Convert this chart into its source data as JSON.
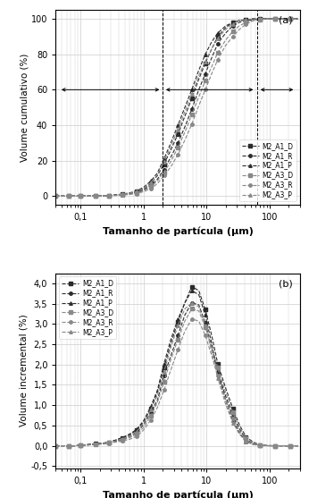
{
  "xlabel": "Tamanho de partícula (μm)",
  "ylabel_a": "Volume cumulativo (%)",
  "ylabel_b": "Volume incremental (%)",
  "xlim": [
    0.04,
    300
  ],
  "ylim_a": [
    -5,
    105
  ],
  "ylim_b": [
    -0.55,
    4.25
  ],
  "yticks_a": [
    0,
    20,
    40,
    60,
    80,
    100
  ],
  "yticks_b": [
    -0.5,
    0.0,
    0.5,
    1.0,
    1.5,
    2.0,
    2.5,
    3.0,
    3.5,
    4.0
  ],
  "series": [
    {
      "label": "M2_A1_D",
      "color": "#2b2b2b",
      "marker": "s",
      "markersize": 2.5,
      "ls": "--",
      "lw": 0.8
    },
    {
      "label": "M2_A1_R",
      "color": "#2b2b2b",
      "marker": "o",
      "markersize": 2.5,
      "ls": "--",
      "lw": 0.8
    },
    {
      "label": "M2_A1_P",
      "color": "#2b2b2b",
      "marker": "^",
      "markersize": 2.5,
      "ls": "--",
      "lw": 0.8
    },
    {
      "label": "M2_A3_D",
      "color": "#888888",
      "marker": "s",
      "markersize": 2.5,
      "ls": "--",
      "lw": 0.8
    },
    {
      "label": "M2_A3_R",
      "color": "#888888",
      "marker": "o",
      "markersize": 2.5,
      "ls": "--",
      "lw": 0.8
    },
    {
      "label": "M2_A3_P",
      "color": "#888888",
      "marker": "^",
      "markersize": 2.5,
      "ls": "--",
      "lw": 0.8
    }
  ],
  "cumulative_x": [
    0.04,
    0.05,
    0.065,
    0.08,
    0.1,
    0.13,
    0.17,
    0.22,
    0.28,
    0.36,
    0.46,
    0.6,
    0.77,
    1.0,
    1.3,
    1.65,
    2.1,
    2.7,
    3.5,
    4.5,
    5.8,
    7.5,
    9.5,
    12,
    15,
    20,
    26,
    33,
    42,
    55,
    70,
    90,
    120,
    160,
    210,
    280
  ],
  "cumulative": {
    "M2_A1_D": [
      0,
      0,
      0,
      0,
      0,
      0.05,
      0.1,
      0.2,
      0.3,
      0.6,
      1.0,
      1.6,
      2.5,
      4.2,
      7.2,
      11.5,
      18,
      26,
      35,
      45,
      55,
      66,
      75,
      83,
      90,
      95,
      98,
      99,
      99.5,
      100,
      100,
      100,
      100,
      100,
      100,
      100
    ],
    "M2_A1_R": [
      0,
      0,
      0,
      0,
      0,
      0.05,
      0.1,
      0.15,
      0.25,
      0.5,
      0.8,
      1.3,
      2.0,
      3.5,
      6.0,
      9.5,
      15,
      22,
      30,
      39,
      49,
      60,
      69,
      78,
      86,
      92,
      96,
      98,
      99,
      99.5,
      100,
      100,
      100,
      100,
      100,
      100
    ],
    "M2_A1_P": [
      0,
      0,
      0,
      0,
      0,
      0.05,
      0.1,
      0.2,
      0.35,
      0.7,
      1.1,
      1.8,
      2.9,
      5.0,
      8.5,
      13,
      21,
      30,
      40,
      50,
      60,
      71,
      80,
      87,
      92,
      96,
      98,
      99,
      99.5,
      100,
      100,
      100,
      100,
      100,
      100,
      100
    ],
    "M2_A3_D": [
      0,
      0,
      0,
      0,
      0,
      0.05,
      0.1,
      0.15,
      0.25,
      0.4,
      0.7,
      1.1,
      1.8,
      3.0,
      5.2,
      8.5,
      13.5,
      19.5,
      27.5,
      36,
      46,
      56,
      65,
      73,
      81,
      88,
      93,
      96,
      98,
      99,
      99.5,
      100,
      100,
      100,
      100,
      100
    ],
    "M2_A3_R": [
      0,
      0,
      0,
      0,
      0,
      0.05,
      0.1,
      0.1,
      0.2,
      0.3,
      0.6,
      0.9,
      1.4,
      2.5,
      4.2,
      7.0,
      11.5,
      16.5,
      23.5,
      31.5,
      40.5,
      51,
      60,
      69,
      77,
      85,
      90,
      94,
      97,
      99,
      99.5,
      100,
      100,
      100,
      100,
      100
    ],
    "M2_A3_P": [
      0,
      0,
      0,
      0,
      0,
      0.05,
      0.1,
      0.2,
      0.35,
      0.6,
      1.0,
      1.6,
      2.6,
      4.4,
      7.5,
      12,
      19.5,
      28,
      37.5,
      47.5,
      57.5,
      68,
      76,
      83,
      89,
      94,
      97,
      99,
      99.5,
      100,
      100,
      100,
      100,
      100,
      100,
      100
    ]
  },
  "incremental_x": [
    0.04,
    0.05,
    0.065,
    0.08,
    0.1,
    0.13,
    0.17,
    0.22,
    0.28,
    0.36,
    0.46,
    0.6,
    0.77,
    1.0,
    1.3,
    1.65,
    2.1,
    2.7,
    3.5,
    4.5,
    5.8,
    7.5,
    9.5,
    12,
    15,
    20,
    26,
    33,
    42,
    55,
    70,
    90,
    120,
    160,
    210,
    280
  ],
  "incremental": {
    "M2_A1_D": [
      0,
      0,
      0,
      0,
      0.02,
      0.03,
      0.05,
      0.06,
      0.09,
      0.14,
      0.2,
      0.27,
      0.38,
      0.58,
      0.92,
      1.32,
      1.92,
      2.52,
      3.05,
      3.52,
      3.92,
      3.82,
      3.35,
      2.72,
      2.02,
      1.42,
      0.92,
      0.52,
      0.22,
      0.09,
      0.02,
      0.006,
      0.001,
      0,
      0,
      0
    ],
    "M2_A1_R": [
      0,
      0,
      0,
      0,
      0.01,
      0.02,
      0.04,
      0.05,
      0.07,
      0.11,
      0.16,
      0.23,
      0.32,
      0.52,
      0.82,
      1.12,
      1.72,
      2.22,
      2.72,
      3.22,
      3.52,
      3.47,
      3.02,
      2.42,
      1.82,
      1.22,
      0.72,
      0.42,
      0.16,
      0.06,
      0.012,
      0.003,
      0,
      0,
      0,
      0
    ],
    "M2_A1_P": [
      0,
      0,
      0,
      0,
      0.01,
      0.03,
      0.05,
      0.06,
      0.09,
      0.14,
      0.2,
      0.29,
      0.4,
      0.62,
      0.97,
      1.37,
      2.02,
      2.62,
      3.12,
      3.52,
      3.82,
      3.72,
      3.22,
      2.52,
      1.82,
      1.12,
      0.62,
      0.32,
      0.11,
      0.04,
      0.01,
      0.002,
      0,
      0,
      0,
      0
    ],
    "M2_A3_D": [
      0,
      0,
      0,
      0,
      0.01,
      0.02,
      0.04,
      0.05,
      0.07,
      0.1,
      0.14,
      0.2,
      0.28,
      0.45,
      0.74,
      1.07,
      1.57,
      2.12,
      2.62,
      3.07,
      3.37,
      3.32,
      2.92,
      2.42,
      1.92,
      1.32,
      0.82,
      0.47,
      0.19,
      0.07,
      0.016,
      0.005,
      0.001,
      0,
      0,
      0
    ],
    "M2_A3_R": [
      0,
      0,
      0,
      0,
      0.01,
      0.02,
      0.03,
      0.04,
      0.06,
      0.09,
      0.12,
      0.16,
      0.23,
      0.39,
      0.64,
      0.94,
      1.37,
      1.87,
      2.37,
      2.82,
      3.12,
      3.07,
      2.72,
      2.22,
      1.72,
      1.12,
      0.67,
      0.37,
      0.13,
      0.05,
      0.011,
      0.002,
      0,
      0,
      0,
      0
    ],
    "M2_A3_P": [
      0,
      0,
      0,
      0,
      0.01,
      0.02,
      0.04,
      0.05,
      0.08,
      0.12,
      0.17,
      0.24,
      0.35,
      0.55,
      0.89,
      1.24,
      1.82,
      2.42,
      2.97,
      3.37,
      3.52,
      3.42,
      2.97,
      2.32,
      1.67,
      1.02,
      0.57,
      0.29,
      0.1,
      0.03,
      0.008,
      0.002,
      0,
      0,
      0,
      0
    ]
  },
  "background_color": "#ffffff",
  "grid_color": "#cccccc"
}
